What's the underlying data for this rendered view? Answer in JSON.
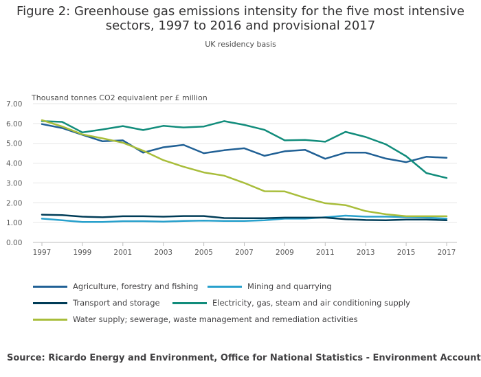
{
  "title_lines": [
    "Figure 2: Greenhouse gas emissions intensity for the five most intensive",
    "sectors, 1997 to 2016 and provisional 2017"
  ],
  "subtitle": "UK residency basis",
  "source": "Source: Ricardo Energy and Environment, Office for National Statistics - Environment Accounts",
  "chart_data": {
    "type": "line",
    "title": "Figure 2: Greenhouse gas emissions intensity for the five most intensive sectors, 1997 to 2016 and provisional 2017",
    "subtitle": "UK residency basis",
    "xlabel": "",
    "ylabel": "Thousand tonnes CO2 equivalent per £ million",
    "ylim": [
      0,
      7
    ],
    "yticks": [
      "0.00",
      "1.00",
      "2.00",
      "3.00",
      "4.00",
      "5.00",
      "6.00",
      "7.00"
    ],
    "xticks": [
      "1997",
      "1999",
      "2001",
      "2003",
      "2005",
      "2007",
      "2009",
      "2011",
      "2013",
      "2015",
      "2017"
    ],
    "grid": true,
    "legend_position": "bottom",
    "x": [
      1997,
      1998,
      1999,
      2000,
      2001,
      2002,
      2003,
      2004,
      2005,
      2006,
      2007,
      2008,
      2009,
      2010,
      2011,
      2012,
      2013,
      2014,
      2015,
      2016,
      2017
    ],
    "series": [
      {
        "name": "Agriculture, forestry and fishing",
        "color": "#206095",
        "values": [
          5.97,
          5.77,
          5.43,
          5.1,
          5.15,
          4.53,
          4.8,
          4.92,
          4.5,
          4.65,
          4.75,
          4.37,
          4.6,
          4.67,
          4.22,
          4.53,
          4.53,
          4.23,
          4.05,
          4.32,
          4.27
        ]
      },
      {
        "name": "Mining and quarrying",
        "color": "#27a0cc",
        "values": [
          1.2,
          1.12,
          1.03,
          1.03,
          1.07,
          1.07,
          1.05,
          1.08,
          1.1,
          1.08,
          1.08,
          1.12,
          1.2,
          1.2,
          1.27,
          1.35,
          1.3,
          1.3,
          1.28,
          1.25,
          1.2
        ]
      },
      {
        "name": "Transport and storage",
        "color": "#003c57",
        "values": [
          1.4,
          1.38,
          1.3,
          1.27,
          1.32,
          1.32,
          1.3,
          1.33,
          1.33,
          1.23,
          1.22,
          1.22,
          1.25,
          1.25,
          1.25,
          1.17,
          1.13,
          1.12,
          1.15,
          1.15,
          1.12
        ]
      },
      {
        "name": "Electricity, gas, steam and air conditioning supply",
        "color": "#118c7b",
        "values": [
          6.12,
          6.08,
          5.55,
          5.7,
          5.87,
          5.67,
          5.88,
          5.8,
          5.85,
          6.12,
          5.93,
          5.68,
          5.15,
          5.17,
          5.08,
          5.58,
          5.32,
          4.95,
          4.35,
          3.5,
          3.25
        ]
      },
      {
        "name": "Water supply; sewerage, waste management and remediation activities",
        "color": "#a8bd3a",
        "values": [
          6.17,
          5.85,
          5.45,
          5.25,
          5.03,
          4.63,
          4.15,
          3.82,
          3.53,
          3.37,
          3.0,
          2.58,
          2.57,
          2.25,
          1.98,
          1.88,
          1.58,
          1.42,
          1.32,
          1.32,
          1.32
        ]
      }
    ]
  }
}
